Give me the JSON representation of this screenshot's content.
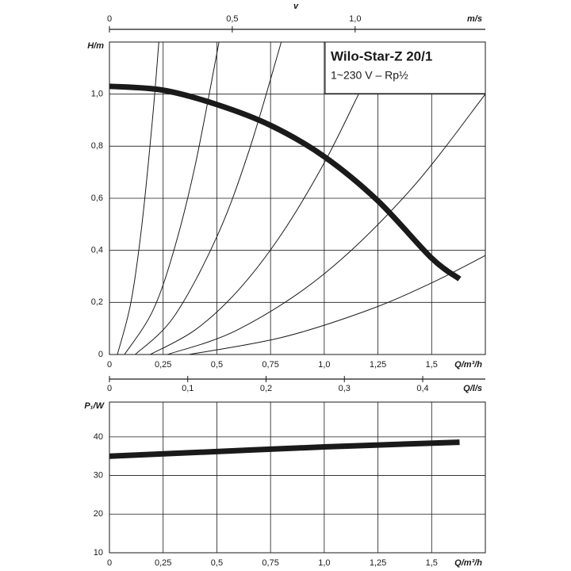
{
  "chart_data": [
    {
      "type": "line",
      "title": "Wilo-Star-Z 20/1",
      "subtitle": "1~230 V – Rp½",
      "ylabel": "H/m",
      "xlabel": "Q/m³/h",
      "xlim": [
        0,
        1.75
      ],
      "xticks": [
        0,
        {
          "value": 0.25,
          "label": "0,25"
        },
        {
          "value": 0.5,
          "label": "0,5"
        },
        {
          "value": 0.75,
          "label": "0,75"
        },
        {
          "value": 1.0,
          "label": "1,0"
        },
        {
          "value": 1.25,
          "label": "1,25"
        },
        {
          "value": 1.5,
          "label": "1,5"
        }
      ],
      "ylim": [
        0,
        1.2
      ],
      "yticks": [
        0,
        {
          "value": 0.2,
          "label": "0,2"
        },
        {
          "value": 0.4,
          "label": "0,4"
        },
        {
          "value": 0.6,
          "label": "0,6"
        },
        {
          "value": 0.8,
          "label": "0,8"
        },
        {
          "value": 1.0,
          "label": "1,0"
        }
      ],
      "x2label": "Q/l/s",
      "x2lim": [
        0,
        0.48
      ],
      "x2ticks": [
        0,
        {
          "value": 0.1,
          "label": "0,1"
        },
        {
          "value": 0.2,
          "label": "0,2"
        },
        {
          "value": 0.3,
          "label": "0,3"
        },
        {
          "value": 0.4,
          "label": "0,4"
        }
      ],
      "x3symbol": "v",
      "x3label": "m/s",
      "x3lim": [
        0,
        1.53
      ],
      "x3ticks": [
        0,
        {
          "value": 0.5,
          "label": "0,5"
        },
        {
          "value": 1.0,
          "label": "1,0"
        }
      ],
      "grid": true,
      "series": [
        {
          "color": "#1a1a1a",
          "line_width": 7,
          "x": [
            0,
            0.25,
            0.5,
            0.75,
            1.0,
            1.25,
            1.5,
            1.63
          ],
          "values": [
            1.03,
            1.015,
            0.96,
            0.88,
            0.76,
            0.59,
            0.37,
            0.29
          ]
        },
        {
          "color": "#1a1a1a",
          "line_width": 1,
          "x": [
            0.037,
            0.1,
            0.15,
            0.2,
            0.23
          ],
          "values": [
            0,
            0.2,
            0.49,
            0.9,
            1.2
          ]
        },
        {
          "color": "#1a1a1a",
          "line_width": 1,
          "x": [
            0.07,
            0.2,
            0.3,
            0.4,
            0.51
          ],
          "values": [
            0,
            0.165,
            0.4,
            0.73,
            1.2
          ]
        },
        {
          "color": "#1a1a1a",
          "line_width": 1,
          "x": [
            0.12,
            0.3,
            0.5,
            0.65,
            0.8
          ],
          "values": [
            0,
            0.145,
            0.452,
            0.783,
            1.2
          ]
        },
        {
          "color": "#1a1a1a",
          "line_width": 1,
          "x": [
            0.19,
            0.4,
            0.6,
            0.8,
            1.0,
            1.16
          ],
          "values": [
            0,
            0.095,
            0.247,
            0.461,
            0.736,
            1.0
          ]
        },
        {
          "color": "#1a1a1a",
          "line_width": 1,
          "x": [
            0.27,
            0.6,
            1.0,
            1.4,
            1.75
          ],
          "values": [
            0,
            0.096,
            0.31,
            0.631,
            1.0
          ]
        },
        {
          "color": "#1a1a1a",
          "line_width": 1,
          "x": [
            0.37,
            0.8,
            1.2,
            1.5,
            1.75
          ],
          "values": [
            0,
            0.065,
            0.169,
            0.275,
            0.38
          ]
        }
      ]
    },
    {
      "type": "line",
      "ylabel": "P₁/W",
      "xlabel": "Q/m³/h",
      "xlim": [
        0,
        1.75
      ],
      "xticks": [
        0,
        {
          "value": 0.25,
          "label": "0,25"
        },
        {
          "value": 0.5,
          "label": "0,5"
        },
        {
          "value": 0.75,
          "label": "0,75"
        },
        {
          "value": 1.0,
          "label": "1,0"
        },
        {
          "value": 1.25,
          "label": "1,25"
        },
        {
          "value": 1.5,
          "label": "1,5"
        }
      ],
      "ylim": [
        10,
        49
      ],
      "yticks": [
        10,
        20,
        30,
        40
      ],
      "grid": true,
      "series": [
        {
          "color": "#1a1a1a",
          "line_width": 7,
          "x": [
            0,
            0.5,
            1.0,
            1.63
          ],
          "values": [
            35,
            36.2,
            37.4,
            38.6
          ]
        }
      ]
    }
  ]
}
